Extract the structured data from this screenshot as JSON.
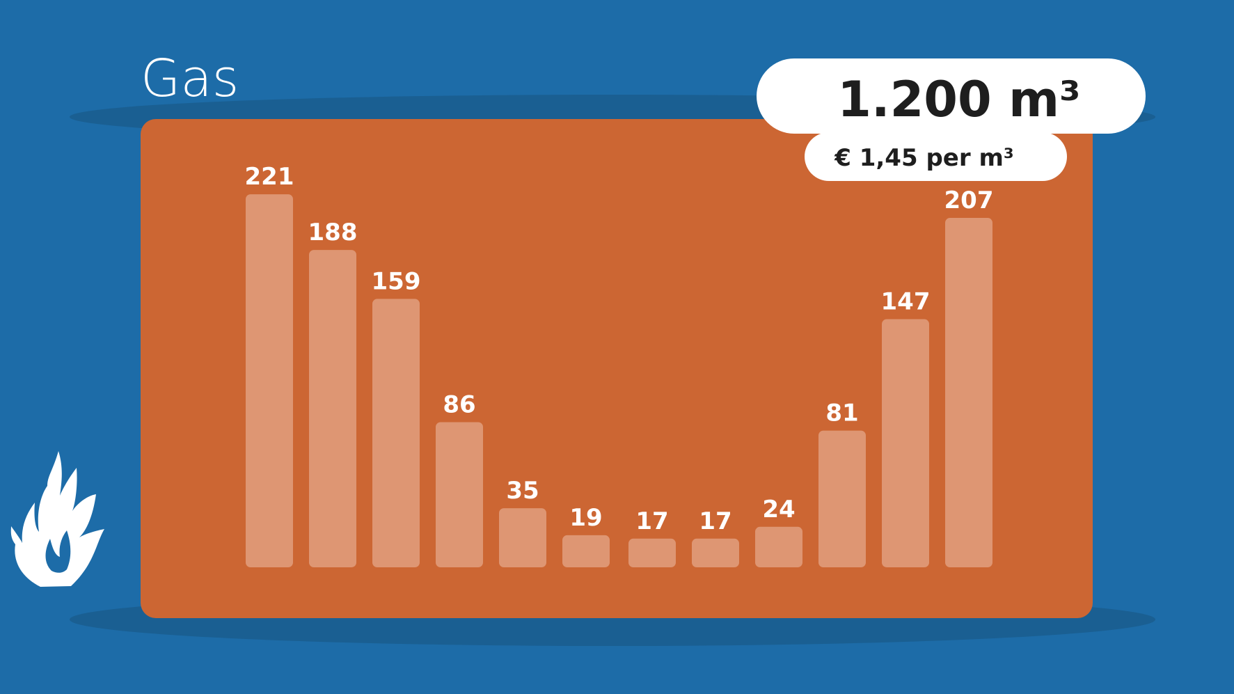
{
  "title": "Gas",
  "summary": {
    "total": "1.200 m³",
    "price": "€ 1,45 per m³"
  },
  "icon": "flame-icon",
  "colors": {
    "background": "#1d6ca8",
    "shadow": "#1a5f92",
    "panel": "#cc6633",
    "bar": "#de9673",
    "label": "#ffffff",
    "pill": "#ffffff",
    "pill_text": "#1e1e1e"
  },
  "chart_data": {
    "type": "bar",
    "values": [
      221,
      188,
      159,
      86,
      35,
      19,
      17,
      17,
      24,
      81,
      147,
      207
    ],
    "labels": [
      "221",
      "188",
      "159",
      "86",
      "35",
      "19",
      "17",
      "17",
      "24",
      "81",
      "147",
      "207"
    ],
    "grid": false,
    "legend": "none"
  }
}
